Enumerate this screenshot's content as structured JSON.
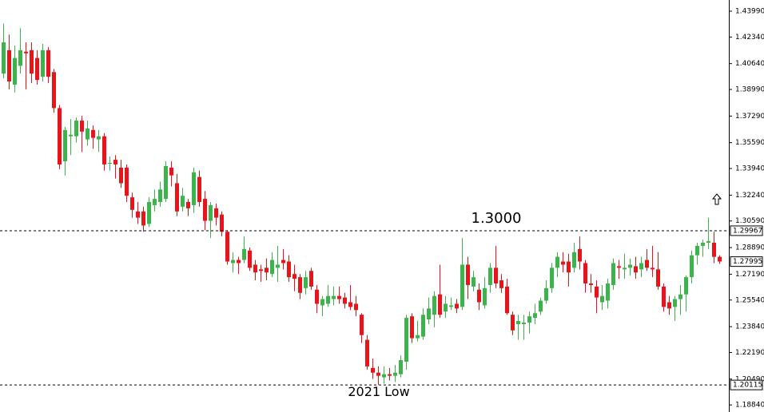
{
  "chart_data": {
    "type": "candlestick",
    "up_color": "#3cb44b",
    "down_color": "#e8141a",
    "ylim": [
      1.18388,
      1.44704
    ],
    "yticks": [
      {
        "value": 1.4399,
        "label": "1.43990"
      },
      {
        "value": 1.4234,
        "label": "1.42340"
      },
      {
        "value": 1.4064,
        "label": "1.40640"
      },
      {
        "value": 1.3899,
        "label": "1.38990"
      },
      {
        "value": 1.3729,
        "label": "1.37290"
      },
      {
        "value": 1.3559,
        "label": "1.35590"
      },
      {
        "value": 1.3394,
        "label": "1.33940"
      },
      {
        "value": 1.3224,
        "label": "1.32240"
      },
      {
        "value": 1.3059,
        "label": "1.30590"
      },
      {
        "value": 1.2889,
        "label": "1.28890"
      },
      {
        "value": 1.2719,
        "label": "1.27190"
      },
      {
        "value": 1.2554,
        "label": "1.25540"
      },
      {
        "value": 1.2384,
        "label": "1.23840"
      },
      {
        "value": 1.2219,
        "label": "1.22190"
      },
      {
        "value": 1.2049,
        "label": "1.20490"
      },
      {
        "value": 1.1884,
        "label": "1.18840"
      }
    ],
    "levels": [
      {
        "value": 1.29967,
        "annotation": "1.3000"
      },
      {
        "value": 1.20115,
        "annotation": "2021 Low"
      }
    ],
    "last_price": 1.27995,
    "open": [
      1.4,
      1.415,
      1.393,
      1.405,
      1.414,
      1.415,
      1.41,
      1.398,
      1.415,
      1.401,
      1.378,
      1.344,
      1.36,
      1.36,
      1.37,
      1.358,
      1.364,
      1.358,
      1.36,
      1.343,
      1.345,
      1.34,
      1.34,
      1.321,
      1.312,
      1.312,
      1.304,
      1.316,
      1.318,
      1.32,
      1.34,
      1.33,
      1.315,
      1.318,
      1.316,
      1.334,
      1.32,
      1.306,
      1.314,
      1.31,
      1.299,
      1.279,
      1.281,
      1.281,
      1.287,
      1.278,
      1.275,
      1.276,
      1.272,
      1.276,
      1.281,
      1.28,
      1.272,
      1.27,
      1.263,
      1.274,
      1.262,
      1.252,
      1.253,
      1.256,
      1.258,
      1.257,
      1.254,
      1.253,
      1.246,
      1.23,
      1.212,
      1.209,
      1.206,
      1.208,
      1.207,
      1.208,
      1.216,
      1.245,
      1.231,
      1.232,
      1.243,
      1.246,
      1.259,
      1.248,
      1.251,
      1.253,
      1.251,
      1.278,
      1.264,
      1.262,
      1.252,
      1.265,
      1.276,
      1.268,
      1.264,
      1.246,
      1.24,
      1.24,
      1.241,
      1.244,
      1.248,
      1.255,
      1.263,
      1.276,
      1.28,
      1.28,
      1.276,
      1.288,
      1.279,
      1.266,
      1.264,
      1.254,
      1.255,
      1.265,
      1.277,
      1.275,
      1.276,
      1.277,
      1.275,
      1.281,
      1.276,
      1.275,
      1.264,
      1.254,
      1.251,
      1.256,
      1.259,
      1.27,
      1.284,
      1.29,
      1.292,
      1.292,
      1.283
    ],
    "high": [
      1.432,
      1.425,
      1.418,
      1.429,
      1.42,
      1.42,
      1.415,
      1.419,
      1.417,
      1.403,
      1.38,
      1.366,
      1.371,
      1.372,
      1.373,
      1.37,
      1.367,
      1.364,
      1.362,
      1.347,
      1.348,
      1.345,
      1.342,
      1.324,
      1.318,
      1.315,
      1.321,
      1.326,
      1.331,
      1.344,
      1.344,
      1.336,
      1.327,
      1.32,
      1.34,
      1.338,
      1.325,
      1.318,
      1.317,
      1.312,
      1.3,
      1.286,
      1.283,
      1.296,
      1.289,
      1.281,
      1.278,
      1.282,
      1.286,
      1.29,
      1.288,
      1.284,
      1.278,
      1.272,
      1.274,
      1.276,
      1.265,
      1.258,
      1.265,
      1.264,
      1.264,
      1.26,
      1.265,
      1.258,
      1.247,
      1.233,
      1.218,
      1.213,
      1.213,
      1.212,
      1.214,
      1.22,
      1.246,
      1.247,
      1.242,
      1.25,
      1.257,
      1.261,
      1.278,
      1.258,
      1.257,
      1.256,
      1.295,
      1.283,
      1.274,
      1.266,
      1.27,
      1.279,
      1.29,
      1.272,
      1.269,
      1.248,
      1.246,
      1.246,
      1.248,
      1.253,
      1.257,
      1.268,
      1.279,
      1.286,
      1.286,
      1.285,
      1.292,
      1.296,
      1.281,
      1.272,
      1.268,
      1.265,
      1.269,
      1.282,
      1.281,
      1.285,
      1.282,
      1.283,
      1.283,
      1.288,
      1.29,
      1.286,
      1.266,
      1.258,
      1.258,
      1.265,
      1.271,
      1.287,
      1.292,
      1.294,
      1.308,
      1.299,
      1.284
    ],
    "low": [
      1.397,
      1.39,
      1.388,
      1.4,
      1.39,
      1.394,
      1.393,
      1.395,
      1.394,
      1.375,
      1.339,
      1.335,
      1.348,
      1.356,
      1.35,
      1.354,
      1.352,
      1.35,
      1.338,
      1.338,
      1.333,
      1.327,
      1.318,
      1.308,
      1.304,
      1.299,
      1.302,
      1.312,
      1.315,
      1.318,
      1.328,
      1.309,
      1.312,
      1.309,
      1.311,
      1.315,
      1.3,
      1.295,
      1.303,
      1.296,
      1.278,
      1.273,
      1.272,
      1.279,
      1.274,
      1.268,
      1.267,
      1.268,
      1.27,
      1.267,
      1.275,
      1.267,
      1.261,
      1.256,
      1.259,
      1.262,
      1.247,
      1.245,
      1.251,
      1.252,
      1.253,
      1.25,
      1.249,
      1.245,
      1.228,
      1.211,
      1.205,
      1.2012,
      1.202,
      1.204,
      1.203,
      1.206,
      1.211,
      1.228,
      1.229,
      1.23,
      1.24,
      1.238,
      1.244,
      1.244,
      1.249,
      1.247,
      1.249,
      1.256,
      1.261,
      1.249,
      1.25,
      1.26,
      1.263,
      1.26,
      1.246,
      1.233,
      1.23,
      1.23,
      1.234,
      1.24,
      1.246,
      1.253,
      1.26,
      1.27,
      1.273,
      1.264,
      1.273,
      1.275,
      1.26,
      1.26,
      1.247,
      1.249,
      1.25,
      1.262,
      1.269,
      1.269,
      1.271,
      1.269,
      1.27,
      1.274,
      1.27,
      1.262,
      1.248,
      1.246,
      1.242,
      1.246,
      1.248,
      1.266,
      1.278,
      1.283,
      1.288,
      1.279,
      1.2785
    ],
    "close": [
      1.42,
      1.395,
      1.41,
      1.415,
      1.413,
      1.4,
      1.396,
      1.415,
      1.398,
      1.378,
      1.342,
      1.364,
      1.361,
      1.37,
      1.363,
      1.365,
      1.359,
      1.36,
      1.342,
      1.343,
      1.342,
      1.33,
      1.322,
      1.313,
      1.308,
      1.303,
      1.318,
      1.32,
      1.326,
      1.341,
      1.335,
      1.312,
      1.322,
      1.314,
      1.337,
      1.318,
      1.306,
      1.316,
      1.308,
      1.299,
      1.28,
      1.281,
      1.279,
      1.288,
      1.276,
      1.273,
      1.274,
      1.273,
      1.281,
      1.278,
      1.279,
      1.27,
      1.269,
      1.26,
      1.27,
      1.264,
      1.253,
      1.256,
      1.258,
      1.258,
      1.256,
      1.253,
      1.251,
      1.249,
      1.233,
      1.213,
      1.209,
      1.207,
      1.208,
      1.207,
      1.209,
      1.217,
      1.244,
      1.231,
      1.233,
      1.246,
      1.25,
      1.258,
      1.246,
      1.253,
      1.252,
      1.25,
      1.278,
      1.265,
      1.27,
      1.254,
      1.263,
      1.276,
      1.266,
      1.263,
      1.247,
      1.236,
      1.242,
      1.241,
      1.245,
      1.247,
      1.255,
      1.263,
      1.276,
      1.283,
      1.278,
      1.273,
      1.286,
      1.28,
      1.266,
      1.265,
      1.257,
      1.258,
      1.266,
      1.279,
      1.276,
      1.276,
      1.278,
      1.273,
      1.279,
      1.276,
      1.275,
      1.264,
      1.251,
      1.25,
      1.256,
      1.259,
      1.27,
      1.284,
      1.29,
      1.292,
      1.293,
      1.283,
      1.28
    ]
  }
}
